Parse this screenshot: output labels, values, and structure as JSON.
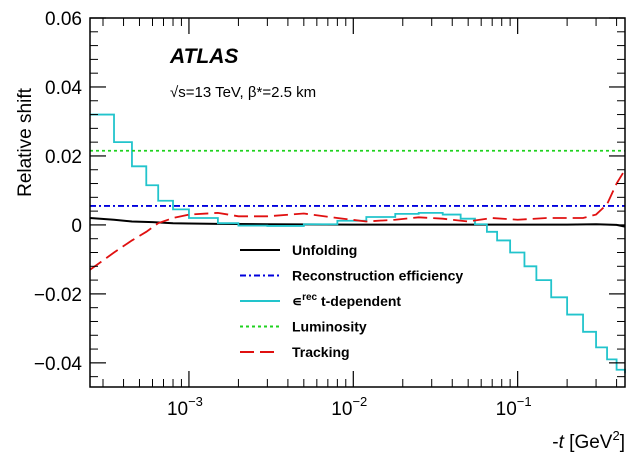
{
  "chart_data": {
    "type": "line",
    "experiment": "ATLAS",
    "energy_label": "√s=13 TeV, β*=2.5 km",
    "ylabel": "Relative shift",
    "xlabel": "-t [GeV²]",
    "xscale": "log",
    "xlim": [
      0.00025,
      0.45
    ],
    "ylim": [
      -0.047,
      0.06
    ],
    "yticks": [
      -0.04,
      -0.02,
      0,
      0.02,
      0.04,
      0.06
    ],
    "ytick_labels": [
      "−0.04",
      "−0.02",
      "0",
      "0.02",
      "0.04",
      "0.06"
    ],
    "xticks": [
      0.001,
      0.01,
      0.1
    ],
    "xtick_base": "10",
    "xtick_exponents": [
      "−3",
      "−2",
      "−1"
    ],
    "grid": false,
    "legend_position": "center",
    "series": [
      {
        "name": "Unfolding",
        "color": "#000000",
        "style": "solid",
        "x": [
          0.00025,
          0.00035,
          0.00045,
          0.0006,
          0.0008,
          0.001,
          0.0015,
          0.003,
          0.01,
          0.03,
          0.1,
          0.2,
          0.3,
          0.4,
          0.45
        ],
        "y": [
          0.002,
          0.0015,
          0.001,
          0.0008,
          0.0005,
          0.0004,
          0.0003,
          0.0002,
          0.0001,
          0.0001,
          0.0001,
          0.0001,
          0.0002,
          0.0,
          -0.0005
        ]
      },
      {
        "name": "Reconstruction efficiency",
        "color": "#0000dd",
        "style": "dashdot",
        "x": [
          0.00025,
          0.45
        ],
        "y": [
          0.0055,
          0.0055
        ]
      },
      {
        "name": "ε^rec t-dependent",
        "label_symbol": "∊",
        "label_sup": "rec",
        "label_rest": " t-dependent",
        "color": "#22c4cc",
        "style": "step",
        "x": [
          0.00025,
          0.00035,
          0.00045,
          0.00055,
          0.00065,
          0.0008,
          0.001,
          0.0015,
          0.002,
          0.003,
          0.005,
          0.008,
          0.012,
          0.018,
          0.025,
          0.035,
          0.045,
          0.055,
          0.065,
          0.075,
          0.09,
          0.11,
          0.13,
          0.16,
          0.2,
          0.25,
          0.3,
          0.35,
          0.4,
          0.45
        ],
        "y": [
          0.032,
          0.024,
          0.017,
          0.0115,
          0.007,
          0.0045,
          0.002,
          0.0005,
          -0.0002,
          -0.0003,
          0.0002,
          0.0012,
          0.0023,
          0.0032,
          0.0035,
          0.003,
          0.0018,
          0.0002,
          -0.002,
          -0.0045,
          -0.008,
          -0.012,
          -0.016,
          -0.021,
          -0.026,
          -0.031,
          -0.0355,
          -0.039,
          -0.042,
          -0.043
        ]
      },
      {
        "name": "Luminosity",
        "color": "#1fd11f",
        "style": "dotted",
        "x": [
          0.00025,
          0.45
        ],
        "y": [
          0.0215,
          0.0215
        ]
      },
      {
        "name": "Tracking",
        "color": "#e01010",
        "style": "dashed",
        "x": [
          0.00025,
          0.00035,
          0.00045,
          0.00055,
          0.00065,
          0.0008,
          0.001,
          0.0015,
          0.002,
          0.003,
          0.005,
          0.008,
          0.012,
          0.018,
          0.025,
          0.035,
          0.05,
          0.07,
          0.1,
          0.15,
          0.2,
          0.25,
          0.3,
          0.35,
          0.4,
          0.45
        ],
        "y": [
          -0.013,
          -0.008,
          -0.0045,
          -0.002,
          0.0005,
          0.002,
          0.003,
          0.0035,
          0.0025,
          0.0025,
          0.0033,
          0.002,
          0.001,
          0.0015,
          0.0022,
          0.0018,
          0.001,
          0.002,
          0.0015,
          0.002,
          0.002,
          0.002,
          0.003,
          0.006,
          0.012,
          0.016
        ]
      }
    ]
  }
}
